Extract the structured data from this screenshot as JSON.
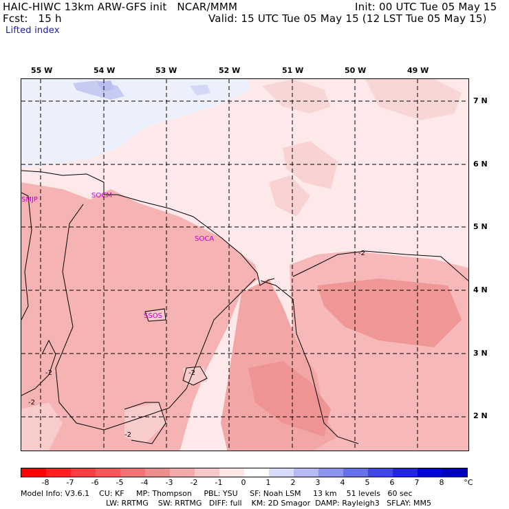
{
  "header": {
    "line1_left": "HAIC-HIWC 13km ARW-GFS init   NCAR/MMM",
    "line1_right": "Init: 00 UTC Tue 05 May 15",
    "line2_left": "Fcst:   15 h",
    "line2_right": "Valid: 15 UTC Tue 05 May 15 (12 LST Tue 05 May 15)",
    "field": "Lifted index"
  },
  "map": {
    "lon_labels": [
      "55 W",
      "54 W",
      "53 W",
      "52 W",
      "51 W",
      "50 W",
      "49 W"
    ],
    "lat_labels": [
      "7 N",
      "6 N",
      "5 N",
      "4 N",
      "3 N",
      "2 N"
    ],
    "stations": [
      "SMJP",
      "SOCM",
      "SOCA",
      "SSOS"
    ],
    "contour_labels": [
      "-2",
      "-2",
      "-2",
      "-2",
      "-2"
    ],
    "colors": {
      "negative_light": "#fde6e6",
      "negative_mid": "#f9c4c4",
      "negative_strong": "#f4a0a0",
      "negative_stronger": "#ee8585",
      "positive_light": "#e6e8fb",
      "positive_mid": "#c8ccf4"
    }
  },
  "colorbar": {
    "ticks": [
      "-8",
      "-7",
      "-6",
      "-5",
      "-4",
      "-3",
      "-2",
      "-1",
      "0",
      "1",
      "2",
      "3",
      "4",
      "5",
      "6",
      "7",
      "8"
    ],
    "unit": "°C",
    "colors": [
      "#ff0000",
      "#ff2020",
      "#f84040",
      "#f45a5a",
      "#f07474",
      "#ec8e8e",
      "#f2aaaa",
      "#f8c8c8",
      "#fde6e6",
      "#ffffff",
      "#d8dcfa",
      "#b4baf4",
      "#8c94ee",
      "#6670e8",
      "#4048e0",
      "#2028d8",
      "#0008d0",
      "#0000b8"
    ]
  },
  "footer": {
    "line1": "Model Info: V3.6.1    CU: KF     MP: Thompson     PBL: YSU     SF: Noah LSM     13 km    51 levels   60 sec",
    "line2": "LW: RRTMG    SW: RRTMG   DIFF: full    KM: 2D Smagor  DAMP: Rayleigh3   SFLAY: MM5"
  }
}
